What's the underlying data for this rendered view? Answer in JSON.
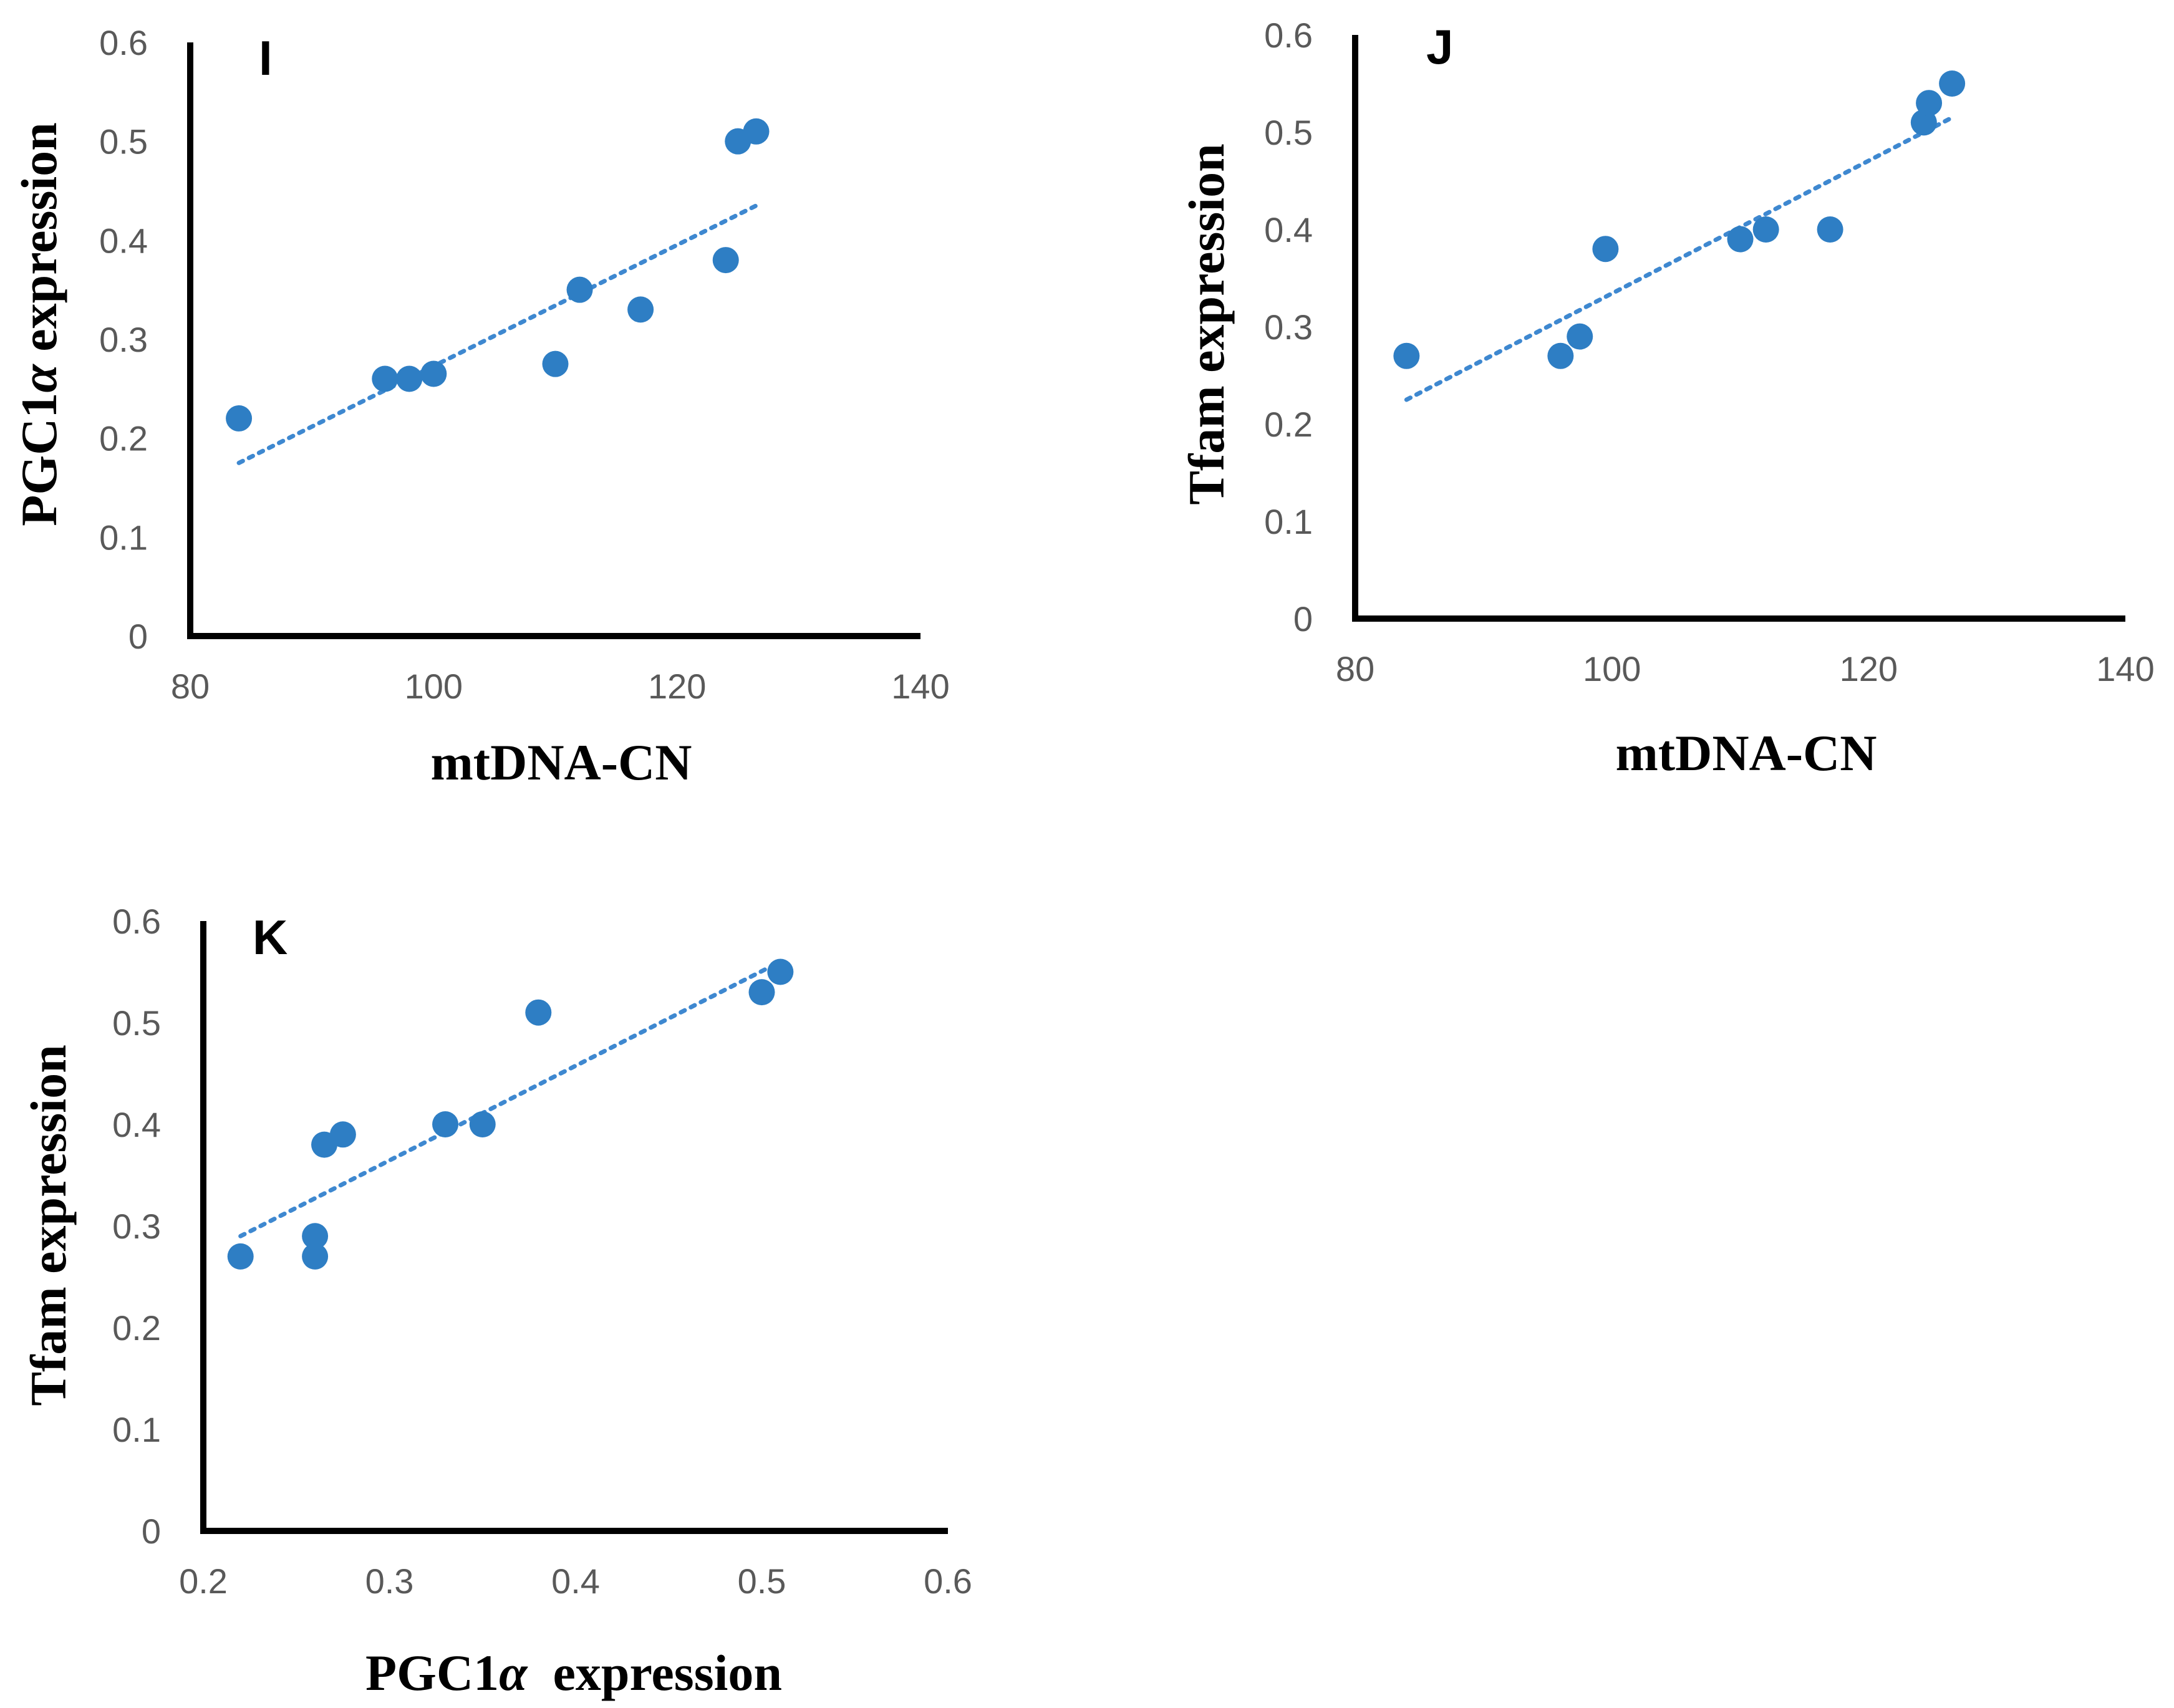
{
  "colors": {
    "marker": "#2E7EC4",
    "trendline": "#3E88D0",
    "axis": "#000000",
    "tick_text": "#595959"
  },
  "chart_data": [
    {
      "type": "scatter",
      "id": "I",
      "panel_label": "I",
      "xlabel": "mtDNA-CN",
      "ylabel_main": "PGC1",
      "ylabel_greek": "α",
      "ylabel_tail": " expression",
      "xlim": [
        80,
        140
      ],
      "ylim": [
        0,
        0.6
      ],
      "xticks": [
        80,
        100,
        120,
        140
      ],
      "yticks": [
        0,
        0.1,
        0.2,
        0.3,
        0.4,
        0.5,
        0.6
      ],
      "xtick_labels": [
        "80",
        "100",
        "120",
        "140"
      ],
      "ytick_labels": [
        "0",
        "0.1",
        "0.2",
        "0.3",
        "0.4",
        "0.5",
        "0.6"
      ],
      "points": [
        {
          "x": 84,
          "y": 0.22
        },
        {
          "x": 96,
          "y": 0.26
        },
        {
          "x": 98,
          "y": 0.26
        },
        {
          "x": 100,
          "y": 0.265
        },
        {
          "x": 110,
          "y": 0.275
        },
        {
          "x": 112,
          "y": 0.35
        },
        {
          "x": 117,
          "y": 0.33
        },
        {
          "x": 124,
          "y": 0.38
        },
        {
          "x": 125,
          "y": 0.5
        },
        {
          "x": 126.5,
          "y": 0.51
        }
      ],
      "trendline": {
        "x": [
          84,
          126.5
        ],
        "y": [
          0.175,
          0.435
        ],
        "style": "dotted"
      }
    },
    {
      "type": "scatter",
      "id": "J",
      "panel_label": "J",
      "xlabel": "mtDNA-CN",
      "ylabel_main": "Tfam expression",
      "ylabel_greek": "",
      "ylabel_tail": "",
      "xlim": [
        80,
        140
      ],
      "ylim": [
        0,
        0.6
      ],
      "xticks": [
        80,
        100,
        120,
        140
      ],
      "yticks": [
        0,
        0.1,
        0.2,
        0.3,
        0.4,
        0.5,
        0.6
      ],
      "xtick_labels": [
        "80",
        "100",
        "120",
        "140"
      ],
      "ytick_labels": [
        "0",
        "0.1",
        "0.2",
        "0.3",
        "0.4",
        "0.5",
        "0.6"
      ],
      "points": [
        {
          "x": 84,
          "y": 0.27
        },
        {
          "x": 96,
          "y": 0.27
        },
        {
          "x": 97.5,
          "y": 0.29
        },
        {
          "x": 99.5,
          "y": 0.38
        },
        {
          "x": 110,
          "y": 0.39
        },
        {
          "x": 112,
          "y": 0.4
        },
        {
          "x": 117,
          "y": 0.4
        },
        {
          "x": 124.3,
          "y": 0.51
        },
        {
          "x": 124.7,
          "y": 0.53
        },
        {
          "x": 126.5,
          "y": 0.55
        }
      ],
      "trendline": {
        "x": [
          84,
          126.5
        ],
        "y": [
          0.225,
          0.515
        ],
        "style": "dotted"
      }
    },
    {
      "type": "scatter",
      "id": "K",
      "panel_label": "K",
      "xlabel_main": "PGC1",
      "xlabel_greek": "α",
      "xlabel_tail": "  expression",
      "ylabel_main": "Tfam expression",
      "ylabel_greek": "",
      "ylabel_tail": "",
      "xlim": [
        0.2,
        0.6
      ],
      "ylim": [
        0,
        0.6
      ],
      "xticks": [
        0.2,
        0.3,
        0.4,
        0.5,
        0.6
      ],
      "yticks": [
        0,
        0.1,
        0.2,
        0.3,
        0.4,
        0.5,
        0.6
      ],
      "xtick_labels": [
        "0.2",
        "0.3",
        "0.4",
        "0.5",
        "0.6"
      ],
      "ytick_labels": [
        "0",
        "0.1",
        "0.2",
        "0.3",
        "0.4",
        "0.5",
        "0.6"
      ],
      "points": [
        {
          "x": 0.22,
          "y": 0.27
        },
        {
          "x": 0.26,
          "y": 0.29
        },
        {
          "x": 0.26,
          "y": 0.27
        },
        {
          "x": 0.265,
          "y": 0.38
        },
        {
          "x": 0.275,
          "y": 0.39
        },
        {
          "x": 0.33,
          "y": 0.4
        },
        {
          "x": 0.35,
          "y": 0.4
        },
        {
          "x": 0.38,
          "y": 0.51
        },
        {
          "x": 0.5,
          "y": 0.53
        },
        {
          "x": 0.51,
          "y": 0.55
        }
      ],
      "trendline": {
        "x": [
          0.22,
          0.51
        ],
        "y": [
          0.29,
          0.56
        ],
        "style": "dotted"
      }
    }
  ]
}
